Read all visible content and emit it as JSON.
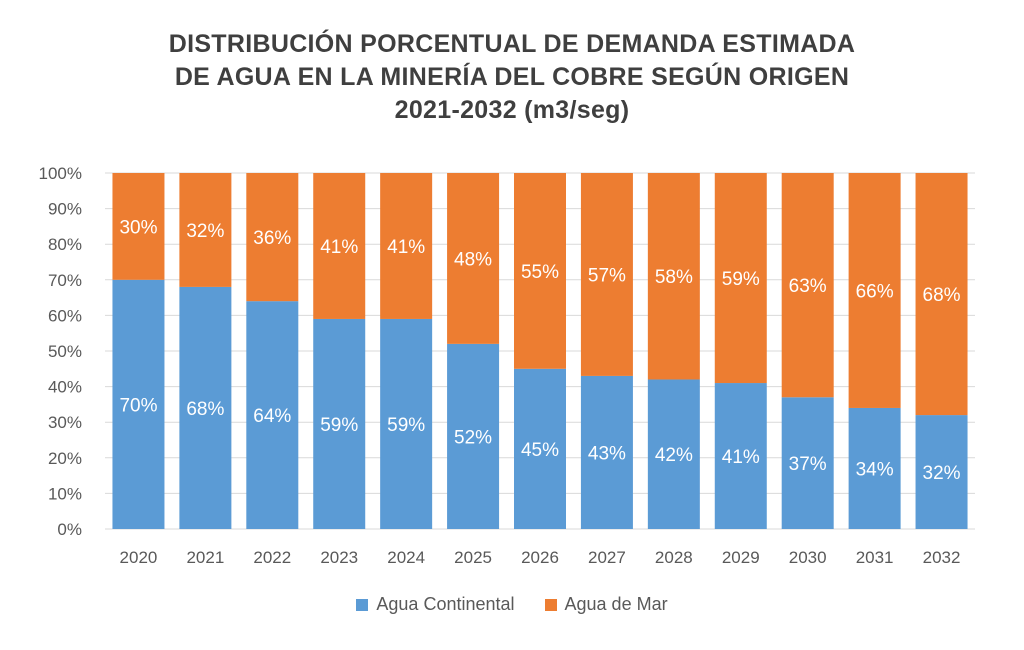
{
  "title_lines": [
    "DISTRIBUCIÓN PORCENTUAL DE DEMANDA ESTIMADA",
    "DE AGUA EN LA MINERÍA DEL COBRE SEGÚN ORIGEN",
    "2021-2032 (m3/seg)"
  ],
  "colors": {
    "continental": "#5B9BD5",
    "mar": "#ED7D31",
    "grid": "#d9d9d9",
    "text": "#595959"
  },
  "chart_data": {
    "type": "bar",
    "stacked": true,
    "percent": true,
    "categories": [
      "2020",
      "2021",
      "2022",
      "2023",
      "2024",
      "2025",
      "2026",
      "2027",
      "2028",
      "2029",
      "2030",
      "2031",
      "2032"
    ],
    "series": [
      {
        "name": "Agua Continental",
        "values": [
          70,
          68,
          64,
          59,
          59,
          52,
          45,
          43,
          42,
          41,
          37,
          34,
          32
        ],
        "labels": [
          "70%",
          "68%",
          "64%",
          "59%",
          "59%",
          "52%",
          "45%",
          "43%",
          "42%",
          "41%",
          "37%",
          "34%",
          "32%"
        ]
      },
      {
        "name": "Agua de Mar",
        "values": [
          30,
          32,
          36,
          41,
          41,
          48,
          55,
          57,
          58,
          59,
          63,
          66,
          68
        ],
        "labels": [
          "30%",
          "32%",
          "36%",
          "41%",
          "41%",
          "48%",
          "55%",
          "57%",
          "58%",
          "59%",
          "63%",
          "66%",
          "68%"
        ]
      }
    ],
    "ylim": [
      0,
      100
    ],
    "yticks": [
      "0%",
      "10%",
      "20%",
      "30%",
      "40%",
      "50%",
      "60%",
      "70%",
      "80%",
      "90%",
      "100%"
    ],
    "grid": true,
    "legend": "bottom"
  }
}
